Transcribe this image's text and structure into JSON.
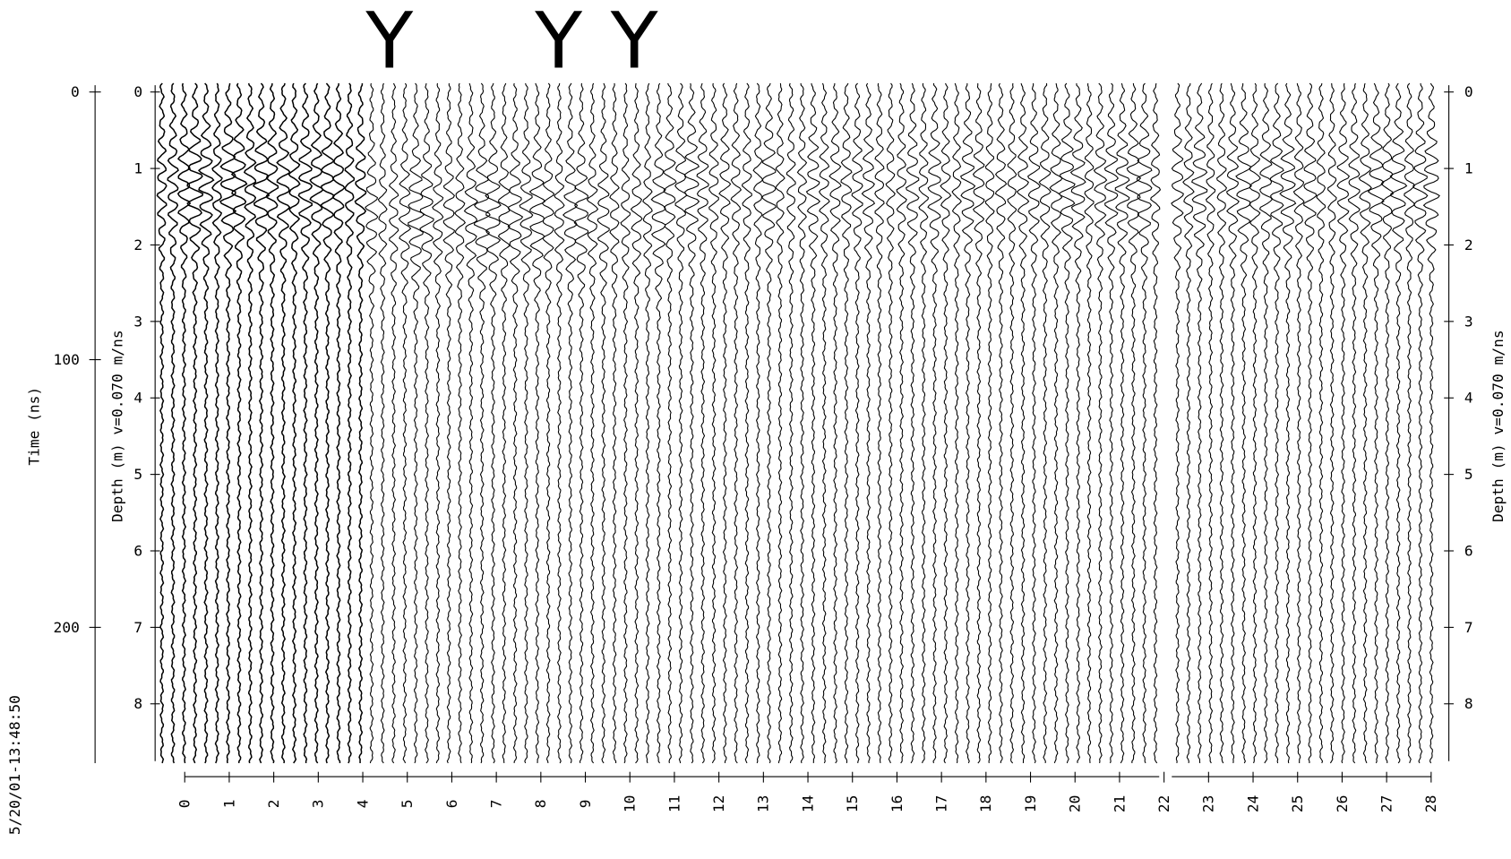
{
  "chart_data": {
    "type": "radargram",
    "y_label": "Time (ns)",
    "ylim": [
      0,
      250
    ],
    "yticks": [
      0,
      100,
      200
    ],
    "depth_label": "Depth (m) v=0.070 m/ns",
    "depth_lim": [
      0,
      8.75
    ],
    "depth_ticks": [
      0,
      1,
      2,
      3,
      4,
      5,
      6,
      7,
      8
    ],
    "xlim": [
      -0.6,
      28.05
    ],
    "xticks": [
      0,
      1,
      2,
      3,
      4,
      5,
      6,
      7,
      8,
      9,
      10,
      11,
      12,
      13,
      14,
      15,
      16,
      17,
      18,
      19,
      20,
      21,
      22,
      23,
      24,
      25,
      26,
      27,
      28
    ],
    "markers": [
      {
        "label": "Y",
        "x": 4.6
      },
      {
        "label": "Y",
        "x": 8.4
      },
      {
        "label": "Y",
        "x": 10.1
      }
    ],
    "timestamp": "5/20/01-13:48:50"
  }
}
